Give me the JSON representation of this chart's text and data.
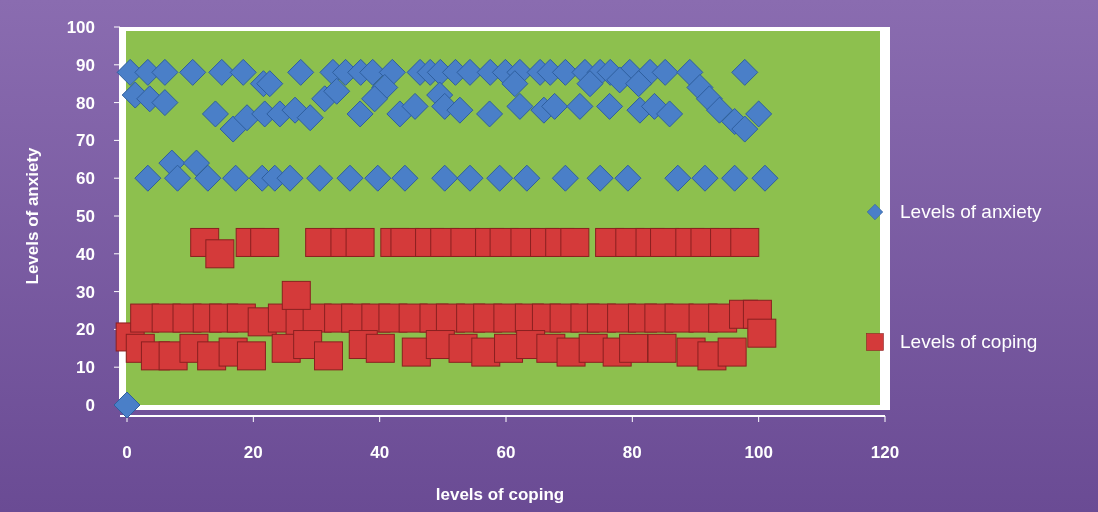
{
  "chart_data": {
    "type": "scatter",
    "xlabel": "levels of coping",
    "ylabel": "Levels of anxiety",
    "xlim": [
      0,
      120
    ],
    "ylim": [
      0,
      100
    ],
    "xticks": [
      0,
      20,
      40,
      60,
      80,
      100,
      120
    ],
    "yticks": [
      0,
      10,
      20,
      30,
      40,
      50,
      60,
      70,
      80,
      90,
      100
    ],
    "grid": false,
    "legend": "right",
    "series": [
      {
        "name": "Levels of anxiety",
        "color": "#4a7fc8",
        "marker": "diamond",
        "x": [
          0,
          0.5,
          3.3,
          6,
          10.4,
          15,
          18.4,
          21.6,
          27.5,
          32.6,
          34.6,
          37,
          38.9,
          42,
          46.4,
          48,
          49.6,
          52,
          54.3,
          57.5,
          59.9,
          62.2,
          65.4,
          67,
          69.4,
          72.5,
          74.9,
          76.5,
          79.6,
          82.8,
          85.2,
          89.1,
          97.8,
          1.3,
          3.6,
          6,
          22.6,
          31.3,
          33.2,
          40.8,
          49.5,
          61.4,
          73.3,
          78,
          81,
          90.7,
          92.2,
          93.8,
          96.2,
          97.8,
          100,
          14,
          16.8,
          19,
          21.8,
          24.2,
          26.6,
          29,
          36.9,
          39.2,
          43.2,
          45.6,
          50.3,
          52.7,
          57.4,
          62.2,
          66,
          67.7,
          71.7,
          76.4,
          81.2,
          83.5,
          85.9,
          3.3,
          7.1,
          8,
          11,
          12.8,
          17.2,
          21.4,
          23.4,
          25.8,
          30.5,
          35.3,
          39.7,
          44,
          50.3,
          54.3,
          59,
          63.3,
          69.4,
          74.9,
          79.3,
          87.2,
          91.5,
          96.2,
          101
        ],
        "values": [
          0,
          88,
          88,
          88,
          88,
          88,
          88,
          85,
          88,
          88,
          88,
          88,
          88,
          88,
          88,
          88,
          88,
          88,
          88,
          88,
          88,
          88,
          88,
          88,
          88,
          88,
          88,
          88,
          88,
          88,
          88,
          88,
          88,
          82,
          81,
          80,
          85,
          81,
          83,
          84,
          82,
          85,
          85,
          86,
          85,
          84,
          81,
          78,
          75,
          73,
          77,
          77,
          73,
          76,
          77,
          77,
          78,
          76,
          77,
          81,
          77,
          79,
          79,
          78,
          77,
          79,
          78,
          79,
          79,
          79,
          78,
          79,
          77,
          60,
          64,
          60,
          64,
          60,
          60,
          60,
          60,
          60,
          60,
          60,
          60,
          60,
          60,
          60,
          60,
          60,
          60,
          60,
          60,
          60,
          60,
          60,
          60
        ]
      },
      {
        "name": "Levels of coping",
        "color": "#d43a3a",
        "marker": "square",
        "x": [
          12.3,
          14.7,
          19.5,
          21.8,
          30.5,
          34.5,
          36.9,
          42.4,
          44,
          47.9,
          50.3,
          53.5,
          57.4,
          59.7,
          63,
          66.1,
          68.5,
          70.9,
          76.4,
          79.6,
          82.8,
          85.1,
          89.1,
          91.5,
          94.6,
          97.8,
          0.5,
          2.8,
          6.2,
          9.5,
          12.7,
          15.3,
          18.1,
          21.4,
          24.6,
          27.4,
          30.1,
          33.5,
          36.2,
          39.4,
          42.1,
          45.3,
          48.6,
          51.2,
          54.4,
          57.1,
          60.3,
          63.7,
          66.4,
          69.2,
          72.5,
          75.1,
          78.3,
          81.6,
          84.2,
          87.4,
          91.2,
          94.3,
          97.6,
          99.8,
          2.1,
          4.5,
          7.3,
          10.6,
          13.4,
          16.8,
          19.7,
          25.2,
          28.6,
          31.9,
          37.4,
          40.1,
          45.8,
          49.6,
          53.2,
          56.8,
          60.4,
          63.9,
          67.1,
          70.3,
          73.8,
          77.6,
          80.2,
          84.7,
          89.3,
          92.6,
          95.8,
          100.5,
          26.8
        ],
        "values": [
          43,
          40,
          43,
          43,
          43,
          43,
          43,
          43,
          43,
          43,
          43,
          43,
          43,
          43,
          43,
          43,
          43,
          43,
          43,
          43,
          43,
          43,
          43,
          43,
          43,
          43,
          18,
          23,
          23,
          23,
          23,
          23,
          23,
          22,
          23,
          22,
          23,
          23,
          23,
          23,
          23,
          23,
          23,
          23,
          23,
          23,
          23,
          23,
          23,
          23,
          23,
          23,
          23,
          23,
          23,
          23,
          23,
          23,
          24,
          24,
          15,
          13,
          13,
          15,
          13,
          14,
          13,
          15,
          16,
          13,
          16,
          15,
          14,
          16,
          15,
          14,
          15,
          16,
          15,
          14,
          15,
          14,
          15,
          15,
          14,
          13,
          14,
          19,
          29
        ]
      }
    ]
  }
}
